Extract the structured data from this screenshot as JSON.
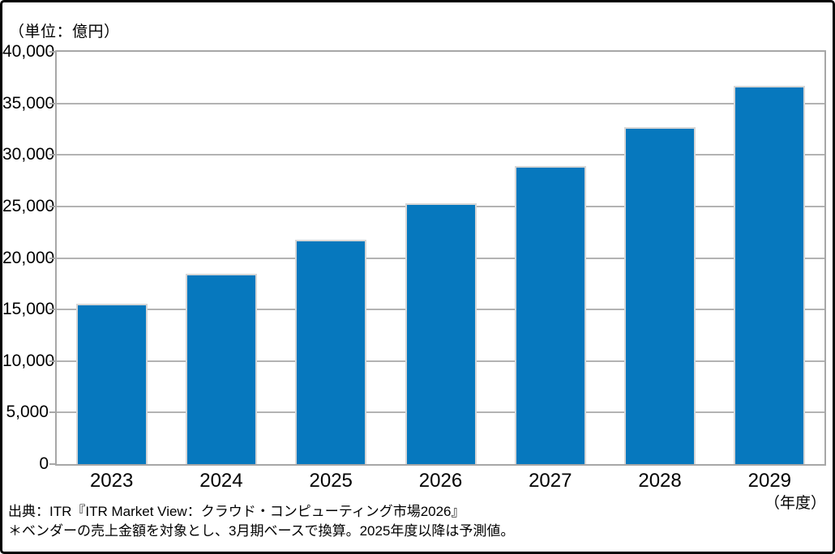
{
  "unit_label": "（単位：億円）",
  "axis_unit_label": "（年度）",
  "source": {
    "line1": "出典：ITR『ITR Market View：クラウド・コンピューティング市場2026』",
    "line2": "＊ベンダーの売上金額を対象とし、3月期ベースで換算。2025年度以降は予測値。"
  },
  "colors": {
    "bar": "#0678be",
    "bar_border": "#d6d6d6",
    "gridline": "#b3b3b3",
    "plot_border": "#a7a7a7",
    "frame": "#000000"
  },
  "chart_data": {
    "type": "bar",
    "title": "",
    "categories": [
      "2023",
      "2024",
      "2025",
      "2026",
      "2027",
      "2028",
      "2029"
    ],
    "values": [
      15600,
      18500,
      21800,
      25300,
      28900,
      32700,
      36700
    ],
    "xlabel": "（年度）",
    "ylabel": "（単位：億円）",
    "ylim": [
      0,
      40000
    ],
    "ytick_interval": 5000,
    "ytick_labels": [
      "0",
      "5,000",
      "10,000",
      "15,000",
      "20,000",
      "25,000",
      "30,000",
      "35,000",
      "40,000"
    ],
    "grid": true,
    "legend": false,
    "bar_color": "#0678be"
  }
}
